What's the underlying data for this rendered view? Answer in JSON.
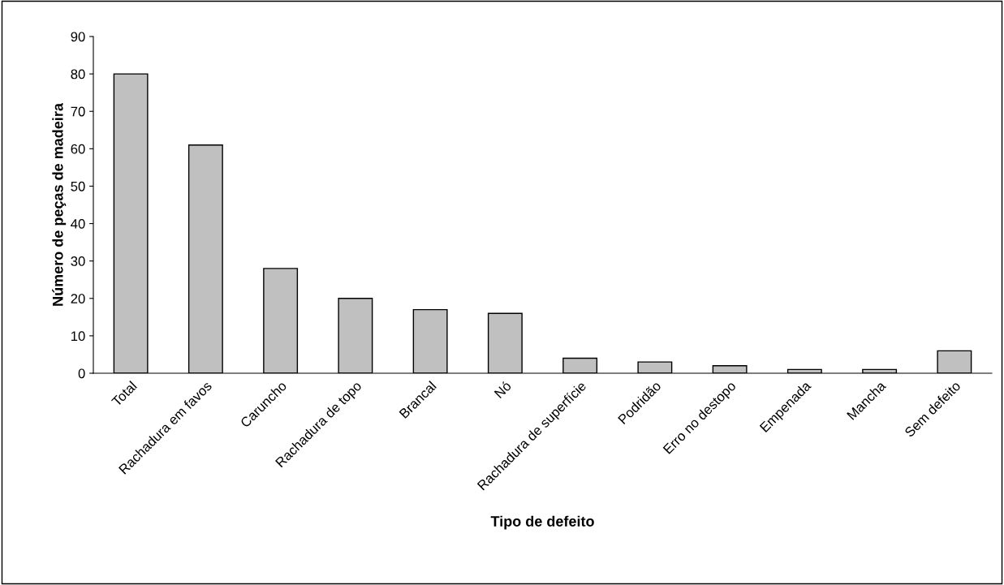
{
  "chart_data": {
    "type": "bar",
    "categories": [
      "Total",
      "Rachadura em favos",
      "Caruncho",
      "Rachadura de topo",
      "Brancal",
      "Nó",
      "Rachadura de superfície",
      "Podridão",
      "Erro no destopo",
      "Empenada",
      "Mancha",
      "Sem defeito"
    ],
    "values": [
      80,
      61,
      28,
      20,
      17,
      16,
      4,
      3,
      2,
      1,
      1,
      6
    ],
    "color": "#c0c0c0",
    "xlabel": "Tipo de defeito",
    "ylabel": "Número de peças de madeira",
    "ylim": [
      0,
      90
    ],
    "yticks": [
      0,
      10,
      20,
      30,
      40,
      50,
      60,
      70,
      80,
      90
    ],
    "grid": false,
    "legend": false
  }
}
